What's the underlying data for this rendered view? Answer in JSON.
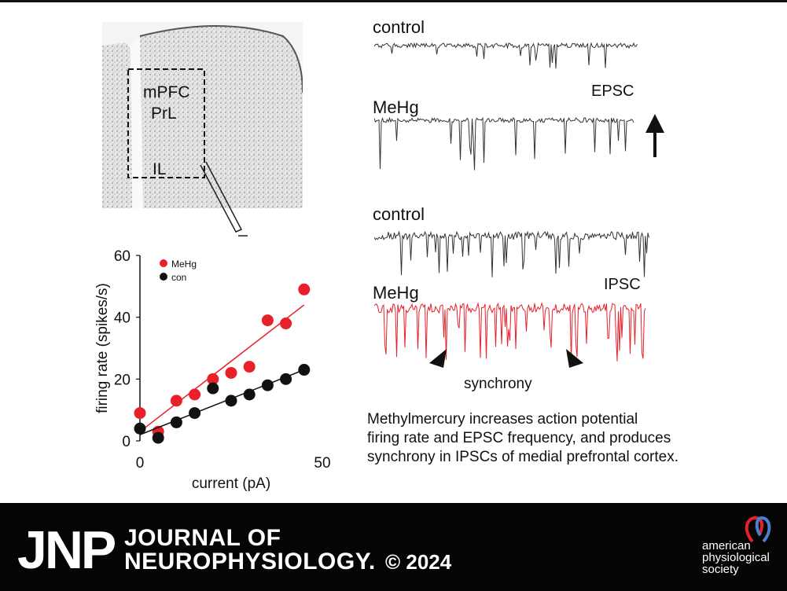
{
  "panel_a": {
    "labels": [
      "mPFC",
      "PrL",
      "IL"
    ]
  },
  "traces": {
    "epsc_control_label": "control",
    "epsc_mehg_label": "MeHg",
    "epsc_label": "EPSC",
    "ipsc_control_label": "control",
    "ipsc_mehg_label": "MeHg",
    "ipsc_label": "IPSC",
    "synchrony_label": "synchrony",
    "colors": {
      "control": "#222222",
      "mehg_ipsc": "#e8202a"
    }
  },
  "summary_lines": [
    "Methylmercury increases action potential",
    "firing rate and EPSC frequency, and produces",
    "synchrony in IPSCs of medial prefrontal cortex."
  ],
  "chart_data": {
    "type": "scatter",
    "xlabel": "current (pA)",
    "ylabel": "firing rate (spikes/s)",
    "xlim": [
      0,
      50
    ],
    "ylim": [
      0,
      60
    ],
    "xticks": [
      0,
      50
    ],
    "yticks": [
      0,
      20,
      40,
      60
    ],
    "legend_position": "top-left",
    "series": [
      {
        "name": "MeHg",
        "color": "#e8202a",
        "x": [
          0,
          5,
          10,
          15,
          20,
          25,
          30,
          35,
          40,
          45
        ],
        "y": [
          9,
          3,
          13,
          15,
          20,
          22,
          24,
          39,
          38,
          49
        ],
        "fit": [
          [
            0,
            3
          ],
          [
            45,
            44
          ]
        ]
      },
      {
        "name": "con",
        "color": "#111111",
        "x": [
          0,
          5,
          10,
          15,
          20,
          25,
          30,
          35,
          40,
          45
        ],
        "y": [
          4,
          1,
          6,
          9,
          17,
          13,
          15,
          18,
          20,
          23
        ],
        "fit": [
          [
            0,
            2
          ],
          [
            45,
            23
          ]
        ]
      }
    ]
  },
  "footer": {
    "journal_abbrev": "JNP",
    "journal_line1": "JOURNAL OF",
    "journal_line2": "NEUROPHYSIOLOGY.",
    "copyright": "© 2024",
    "society_lines": [
      "american",
      "physiological",
      "society"
    ]
  }
}
